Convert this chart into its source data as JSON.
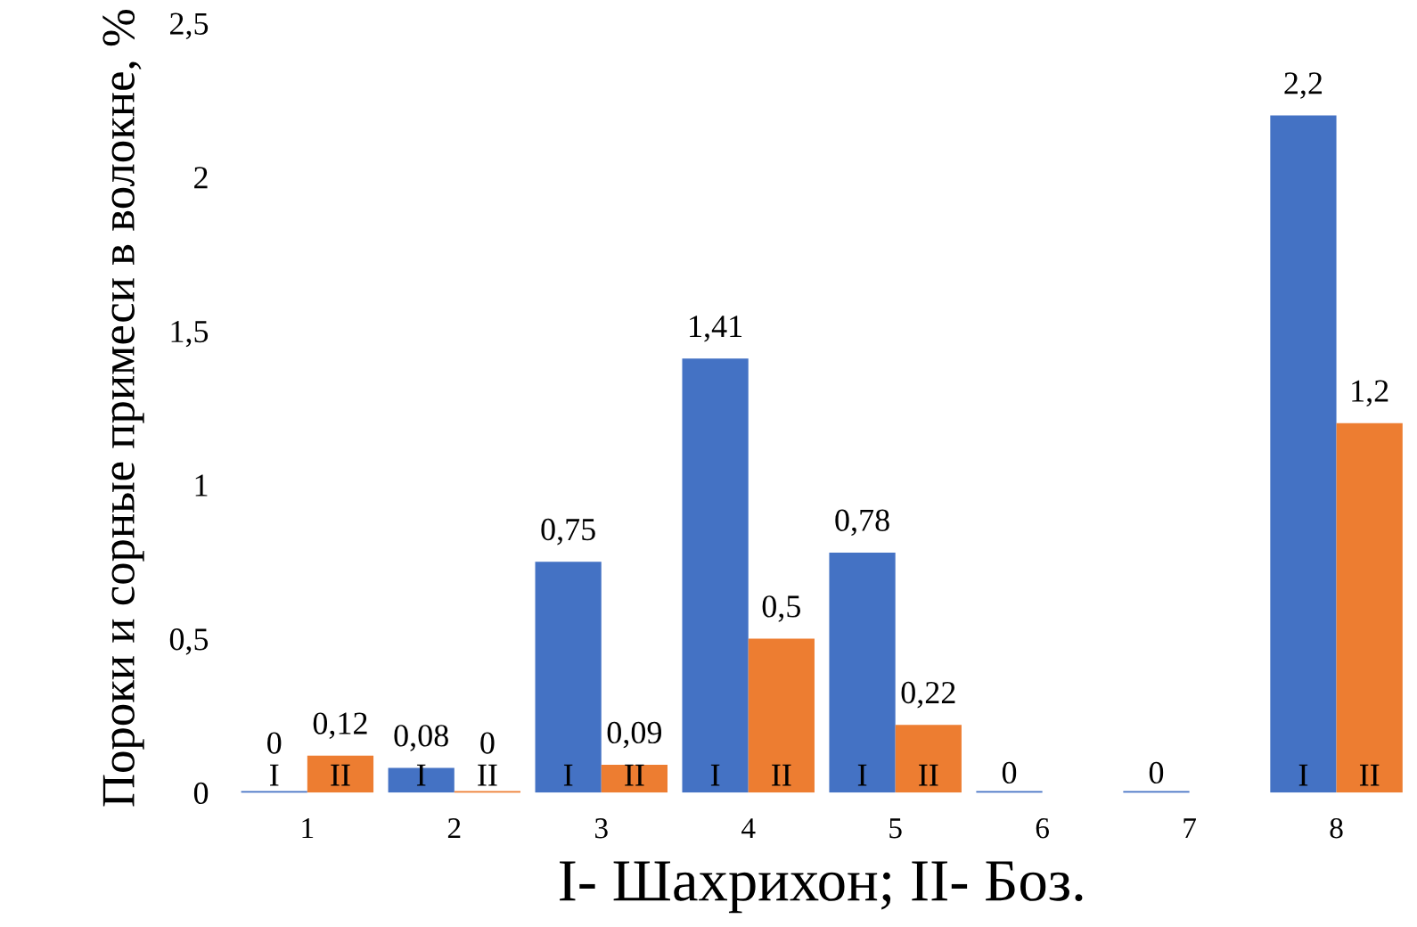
{
  "chart_data": {
    "type": "bar",
    "xlabel": "I- Шахрихон; II- Боз.",
    "ylabel": "Пороки и сорные примеси в волокне, %",
    "categories": [
      "1",
      "2",
      "3",
      "4",
      "5",
      "6",
      "7",
      "8"
    ],
    "series": [
      {
        "name": "I",
        "color": "#4472c4",
        "values": [
          0,
          0.08,
          0.75,
          1.41,
          0.78,
          0,
          0,
          2.2
        ],
        "value_labels": [
          "0",
          "0,08",
          "0,75",
          "1,41",
          "0,78",
          "0",
          "0",
          "2,2"
        ]
      },
      {
        "name": "II",
        "color": "#ed7d31",
        "values": [
          0.12,
          0,
          0.09,
          0.5,
          0.22,
          null,
          null,
          1.2
        ],
        "value_labels": [
          "0,12",
          "0",
          "0,09",
          "0,5",
          "0,22",
          null,
          null,
          "1,2"
        ]
      }
    ],
    "ylim": [
      0,
      2.5
    ],
    "yticks": [
      {
        "value": 0,
        "label": "0"
      },
      {
        "value": 0.5,
        "label": "0,5"
      },
      {
        "value": 1,
        "label": "1"
      },
      {
        "value": 1.5,
        "label": "1,5"
      },
      {
        "value": 2,
        "label": "2"
      },
      {
        "value": 2.5,
        "label": "2,5"
      }
    ],
    "grid": false,
    "legend": false
  }
}
